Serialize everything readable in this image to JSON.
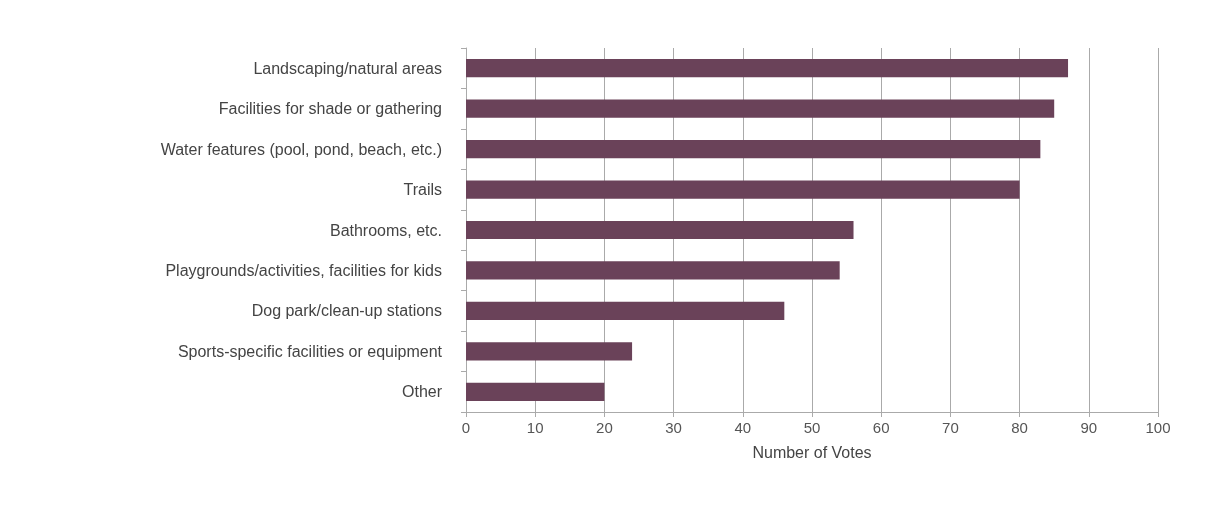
{
  "chart_data": {
    "type": "bar",
    "orientation": "horizontal",
    "xlabel": "Number of Votes",
    "categories": [
      "Landscaping/natural areas",
      "Facilities for shade or gathering",
      "Water features (pool, pond, beach, etc.)",
      "Trails",
      "Bathrooms, etc.",
      "Playgrounds/activities, facilities for kids",
      "Dog park/clean-up stations",
      "Sports-specific facilities or equipment",
      "Other"
    ],
    "values": [
      87,
      85,
      83,
      80,
      56,
      54,
      46,
      24,
      20
    ],
    "color": "#6a4259",
    "xlim": [
      0,
      100
    ],
    "xticks": [
      0,
      10,
      20,
      30,
      40,
      50,
      60,
      70,
      80,
      90,
      100
    ],
    "grid": "x"
  }
}
